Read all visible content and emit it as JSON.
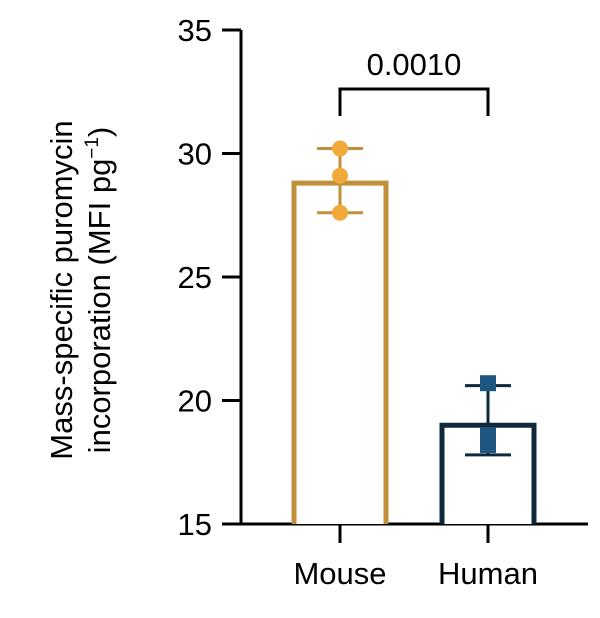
{
  "chart_data": {
    "type": "bar",
    "title": "",
    "categories": [
      "Mouse",
      "Human"
    ],
    "values": [
      28.8,
      19.0
    ],
    "error": [
      {
        "low": 27.6,
        "high": 30.2
      },
      {
        "low": 17.8,
        "high": 20.6
      }
    ],
    "points": [
      [
        30.2,
        29.1,
        27.6
      ],
      [
        20.7,
        18.6,
        18.2
      ]
    ],
    "ylabel_line1": "Mass-specific puromycin",
    "ylabel_line2_main": "incorporation (MFI pg",
    "ylabel_line2_sup": "−1",
    "ylabel_line2_end": ")",
    "ylim": [
      15,
      35
    ],
    "yticks": [
      "15",
      "20",
      "25",
      "30",
      "35"
    ],
    "significance": {
      "label": "0.0010",
      "between": [
        "Mouse",
        "Human"
      ]
    },
    "colors": {
      "mouse_bar": "#C0913A",
      "mouse_points": "#F2A93B",
      "human_bar": "#0E2A3A",
      "human_points": "#1F5680"
    },
    "grid": false
  }
}
